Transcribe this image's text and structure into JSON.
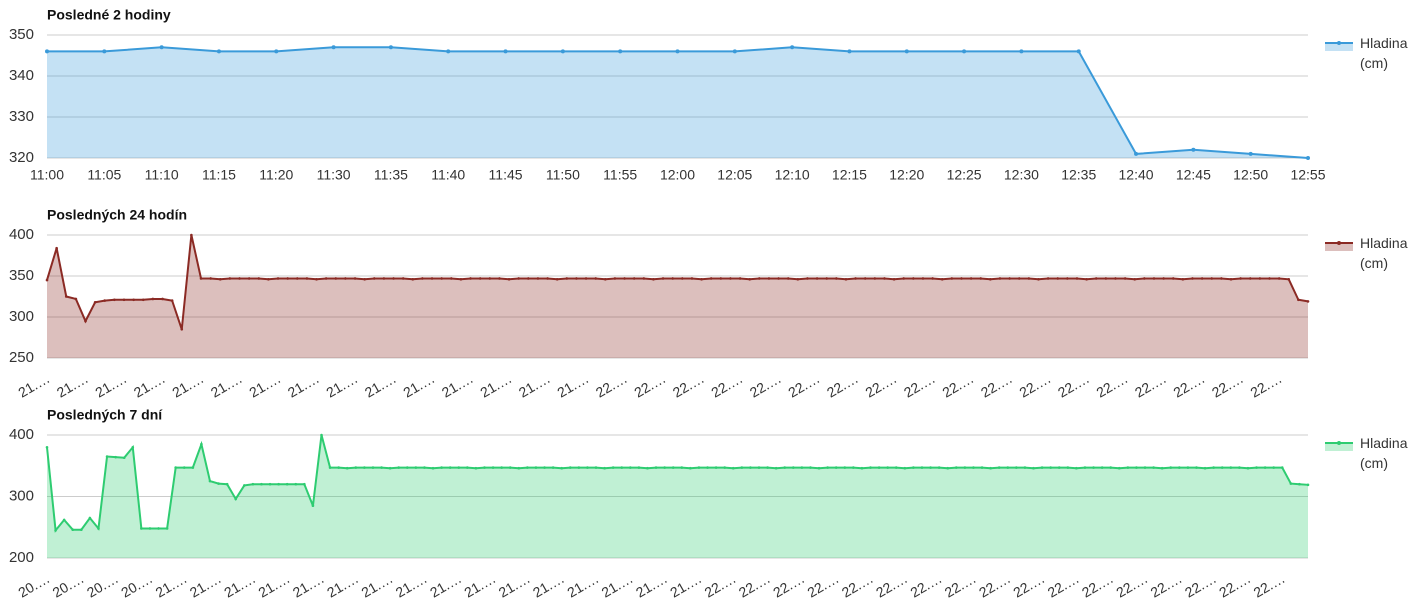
{
  "chart_data": [
    {
      "type": "area",
      "title": "Posledné 2 hodiny",
      "categories": [
        "11:00",
        "11:05",
        "11:10",
        "11:15",
        "11:20",
        "11:30",
        "11:35",
        "11:40",
        "11:45",
        "11:50",
        "11:55",
        "12:00",
        "12:05",
        "12:10",
        "12:15",
        "12:20",
        "12:25",
        "12:30",
        "12:35",
        "12:40",
        "12:45",
        "12:50",
        "12:55"
      ],
      "series": [
        {
          "name": "Hladina (cm)",
          "color": "#3a9ad9",
          "values": [
            346,
            346,
            347,
            346,
            346,
            347,
            347,
            346,
            346,
            346,
            346,
            346,
            346,
            347,
            346,
            346,
            346,
            346,
            346,
            321,
            322,
            321,
            320
          ]
        }
      ],
      "ylim": [
        320,
        350
      ],
      "yticks": [
        320,
        330,
        340,
        350
      ],
      "grid": true,
      "legend": "right"
    },
    {
      "type": "area",
      "title": "Posledných 24 hodín",
      "categories": [
        "21.…",
        null,
        null,
        null,
        "21.…",
        null,
        null,
        null,
        "21.…",
        null,
        null,
        null,
        "21.…",
        null,
        null,
        null,
        "21.…",
        null,
        null,
        null,
        "21.…",
        null,
        null,
        null,
        "21.…",
        null,
        null,
        null,
        "21.…",
        null,
        null,
        null,
        "21.…",
        null,
        null,
        null,
        "21.…",
        null,
        null,
        null,
        "21.…",
        null,
        null,
        null,
        "21.…",
        null,
        null,
        null,
        "21.…",
        null,
        null,
        null,
        "21.…",
        null,
        null,
        null,
        "21.…",
        null,
        null,
        null,
        "22.…",
        null,
        null,
        null,
        "22.…",
        null,
        null,
        null,
        "22.…",
        null,
        null,
        null,
        "22.…",
        null,
        null,
        null,
        "22.…",
        null,
        null,
        null,
        "22.…",
        null,
        null,
        null,
        "22.…",
        null,
        null,
        null,
        "22.…",
        null,
        null,
        null,
        "22.…",
        null,
        null,
        null,
        "22.…",
        null,
        null,
        null,
        "22.…",
        null,
        null,
        null,
        "22.…",
        null,
        null,
        null,
        "22.…",
        null,
        null,
        null,
        "22.…",
        null,
        null,
        null,
        "22.…",
        null,
        null,
        null,
        "22.…",
        null,
        null,
        null,
        "22.…",
        null,
        null,
        null,
        "22.…",
        null,
        null,
        null
      ],
      "series": [
        {
          "name": "Hladina (cm)",
          "color": "#8b2a24",
          "values": [
            345,
            384,
            325,
            322,
            295,
            318,
            320,
            321,
            321,
            321,
            321,
            322,
            322,
            320,
            285,
            400,
            347,
            347,
            346,
            347,
            347,
            347,
            347,
            346,
            347,
            347,
            347,
            347,
            346,
            347,
            347,
            347,
            347,
            346,
            347,
            347,
            347,
            347,
            346,
            347,
            347,
            347,
            347,
            346,
            347,
            347,
            347,
            347,
            346,
            347,
            347,
            347,
            347,
            346,
            347,
            347,
            347,
            347,
            346,
            347,
            347,
            347,
            347,
            346,
            347,
            347,
            347,
            347,
            346,
            347,
            347,
            347,
            347,
            346,
            347,
            347,
            347,
            347,
            346,
            347,
            347,
            347,
            347,
            346,
            347,
            347,
            347,
            347,
            346,
            347,
            347,
            347,
            347,
            346,
            347,
            347,
            347,
            347,
            346,
            347,
            347,
            347,
            347,
            346,
            347,
            347,
            347,
            347,
            346,
            347,
            347,
            347,
            347,
            346,
            347,
            347,
            347,
            347,
            346,
            347,
            347,
            347,
            347,
            346,
            347,
            347,
            347,
            347,
            347,
            346,
            321,
            319
          ]
        }
      ],
      "ylim": [
        250,
        400
      ],
      "yticks": [
        250,
        300,
        350,
        400
      ],
      "grid": true,
      "legend": "right"
    },
    {
      "type": "area",
      "title": "Posledných 7 dní",
      "categories": [
        "20.…",
        null,
        null,
        null,
        "20.…",
        null,
        null,
        null,
        "20.…",
        null,
        null,
        null,
        "20.…",
        null,
        null,
        null,
        "21.…",
        null,
        null,
        null,
        "21.…",
        null,
        null,
        null,
        "21.…",
        null,
        null,
        null,
        "21.…",
        null,
        null,
        null,
        "21.…",
        null,
        null,
        null,
        "21.…",
        null,
        null,
        null,
        "21.…",
        null,
        null,
        null,
        "21.…",
        null,
        null,
        null,
        "21.…",
        null,
        null,
        null,
        "21.…",
        null,
        null,
        null,
        "21.…",
        null,
        null,
        null,
        "21.…",
        null,
        null,
        null,
        "21.…",
        null,
        null,
        null,
        "21.…",
        null,
        null,
        null,
        "21.…",
        null,
        null,
        null,
        "21.…",
        null,
        null,
        null,
        "22.…",
        null,
        null,
        null,
        "22.…",
        null,
        null,
        null,
        "22.…",
        null,
        null,
        null,
        "22.…",
        null,
        null,
        null,
        "22.…",
        null,
        null,
        null,
        "22.…",
        null,
        null,
        null,
        "22.…",
        null,
        null,
        null,
        "22.…",
        null,
        null,
        null,
        "22.…",
        null,
        null,
        null,
        "22.…",
        null,
        null,
        null,
        "22.…",
        null,
        null,
        null,
        "22.…",
        null,
        null,
        null,
        "22.…",
        null,
        null,
        null,
        "22.…",
        null,
        null,
        null,
        "22.…",
        null,
        null,
        null,
        "22.…",
        null,
        null,
        null,
        "22.…",
        null,
        null,
        null
      ],
      "series": [
        {
          "name": "Hladina (cm)",
          "color": "#2ecc71",
          "values": [
            380,
            245,
            262,
            246,
            246,
            265,
            248,
            365,
            364,
            363,
            380,
            248,
            248,
            248,
            248,
            347,
            347,
            347,
            385,
            325,
            321,
            320,
            296,
            318,
            320,
            320,
            320,
            320,
            320,
            320,
            320,
            285,
            400,
            347,
            347,
            346,
            347,
            347,
            347,
            347,
            346,
            347,
            347,
            347,
            347,
            346,
            347,
            347,
            347,
            347,
            346,
            347,
            347,
            347,
            347,
            346,
            347,
            347,
            347,
            347,
            346,
            347,
            347,
            347,
            347,
            346,
            347,
            347,
            347,
            347,
            346,
            347,
            347,
            347,
            347,
            346,
            347,
            347,
            347,
            347,
            346,
            347,
            347,
            347,
            347,
            346,
            347,
            347,
            347,
            347,
            346,
            347,
            347,
            347,
            347,
            346,
            347,
            347,
            347,
            347,
            346,
            347,
            347,
            347,
            347,
            346,
            347,
            347,
            347,
            347,
            346,
            347,
            347,
            347,
            347,
            346,
            347,
            347,
            347,
            347,
            346,
            347,
            347,
            347,
            347,
            346,
            347,
            347,
            347,
            347,
            346,
            347,
            347,
            347,
            347,
            346,
            347,
            347,
            347,
            347,
            346,
            347,
            347,
            347,
            347,
            321,
            320,
            319
          ]
        }
      ],
      "ylim": [
        200,
        400
      ],
      "yticks": [
        200,
        300,
        400
      ],
      "grid": true,
      "legend": "right"
    }
  ]
}
